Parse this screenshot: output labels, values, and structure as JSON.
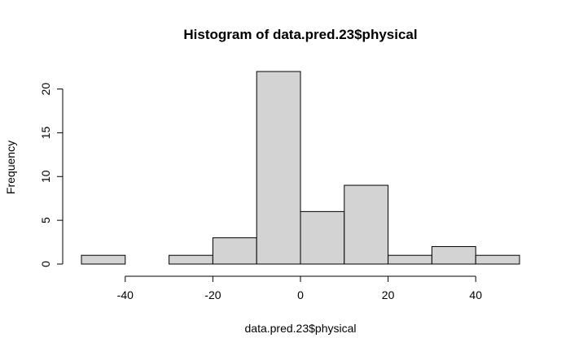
{
  "chart_data": {
    "type": "bar",
    "title": "Histogram of data.pred.23$physical",
    "xlabel": "data.pred.23$physical",
    "ylabel": "Frequency",
    "bins": [
      {
        "start": -50,
        "end": -40,
        "count": 1
      },
      {
        "start": -40,
        "end": -30,
        "count": 0
      },
      {
        "start": -30,
        "end": -20,
        "count": 1
      },
      {
        "start": -20,
        "end": -10,
        "count": 3
      },
      {
        "start": -10,
        "end": 0,
        "count": 22
      },
      {
        "start": 0,
        "end": 10,
        "count": 6
      },
      {
        "start": 10,
        "end": 20,
        "count": 9
      },
      {
        "start": 20,
        "end": 30,
        "count": 1
      },
      {
        "start": 30,
        "end": 40,
        "count": 2
      },
      {
        "start": 40,
        "end": 50,
        "count": 1
      }
    ],
    "xlim": [
      -50,
      50
    ],
    "ylim": [
      0,
      22
    ],
    "x_ticks": [
      -40,
      -20,
      0,
      20,
      40
    ],
    "x_tick_labels": [
      "-40",
      "-20",
      "0",
      "20",
      "40"
    ],
    "y_ticks": [
      0,
      5,
      10,
      15,
      20
    ],
    "y_tick_labels": [
      "0",
      "5",
      "10",
      "15",
      "20"
    ],
    "bar_color": "#d3d3d3",
    "grid": false,
    "legend": "none"
  }
}
